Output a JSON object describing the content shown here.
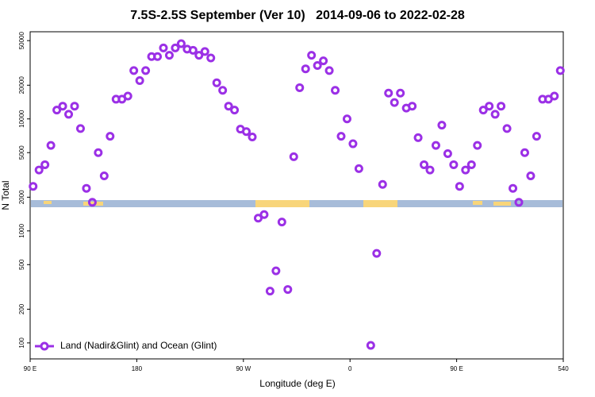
{
  "chart_data": {
    "type": "scatter",
    "title": "7.5S-2.5S September (Ver 10)   2014-09-06 to 2022-02-28",
    "x_label": "Longitude (deg E)",
    "y_label": "N Total",
    "xlim": [
      90,
      540
    ],
    "xticks": [
      {
        "value": 90,
        "label": "90 E"
      },
      180,
      {
        "value": 270,
        "label": "90 W"
      },
      {
        "value": 360,
        "label": "0"
      },
      {
        "value": 450,
        "label": "90 E"
      },
      540
    ],
    "ylim": [
      72,
      60000
    ],
    "ylog": true,
    "yticks": [
      100,
      200,
      500,
      1000,
      2000,
      5000,
      10000,
      20000,
      50000
    ],
    "legend_position": "lower left",
    "series": [
      {
        "name": "Land (Nadir&Glint) and Ocean (Glint)",
        "color": "#9b30e6",
        "x": [
          92.5,
          97.5,
          102.5,
          107.5,
          112.5,
          117.5,
          122.5,
          127.5,
          132.5,
          137.5,
          142.5,
          147.5,
          152.5,
          157.5,
          162.5,
          167.5,
          172.5,
          177.5,
          182.5,
          187.5,
          192.5,
          197.5,
          202.5,
          207.5,
          212.5,
          217.5,
          222.5,
          227.5,
          232.5,
          237.5,
          242.5,
          247.5,
          252.5,
          257.5,
          262.5,
          267.5,
          272.5,
          277.5,
          282.5,
          287.5,
          292.5,
          297.5,
          302.5,
          307.5,
          312.5,
          317.5,
          322.5,
          327.5,
          332.5,
          337.5,
          342.5,
          347.5,
          352.5,
          357.5,
          362.5,
          367.5,
          377.5,
          382.5,
          387.5,
          392.5,
          397.5,
          402.5,
          407.5,
          412.5,
          417.5,
          422.5,
          427.5,
          432.5,
          437.5,
          442.5,
          447.5,
          452.5,
          457.5,
          462.5,
          467.5,
          472.5,
          477.5,
          482.5,
          487.5,
          492.5,
          497.5,
          502.5,
          507.5,
          512.5,
          517.5,
          522.5,
          527.5,
          532.5,
          537.5
        ],
        "values": [
          2500,
          3500,
          3900,
          5800,
          12000,
          13000,
          11000,
          13000,
          8200,
          2400,
          1800,
          5000,
          3100,
          7000,
          15000,
          15000,
          16000,
          27000,
          22000,
          27000,
          36000,
          36000,
          43000,
          37000,
          43000,
          47000,
          42000,
          41000,
          37000,
          40000,
          35000,
          21000,
          18000,
          13000,
          12000,
          8100,
          7700,
          6900,
          1300,
          1400,
          290,
          440,
          1200,
          300,
          4600,
          19000,
          28000,
          37000,
          30000,
          33000,
          27000,
          18000,
          7000,
          10000,
          6000,
          3600,
          95,
          630,
          2600,
          17000,
          14000,
          17000,
          12500,
          13000,
          6800,
          3900,
          3500,
          5800,
          8800,
          4900,
          3900,
          2500,
          3500,
          3900,
          5800,
          12000,
          13000,
          11000,
          13000,
          8200,
          2400,
          1800,
          5000,
          3100,
          7000,
          15000,
          15000,
          16000,
          27000
        ]
      }
    ]
  }
}
